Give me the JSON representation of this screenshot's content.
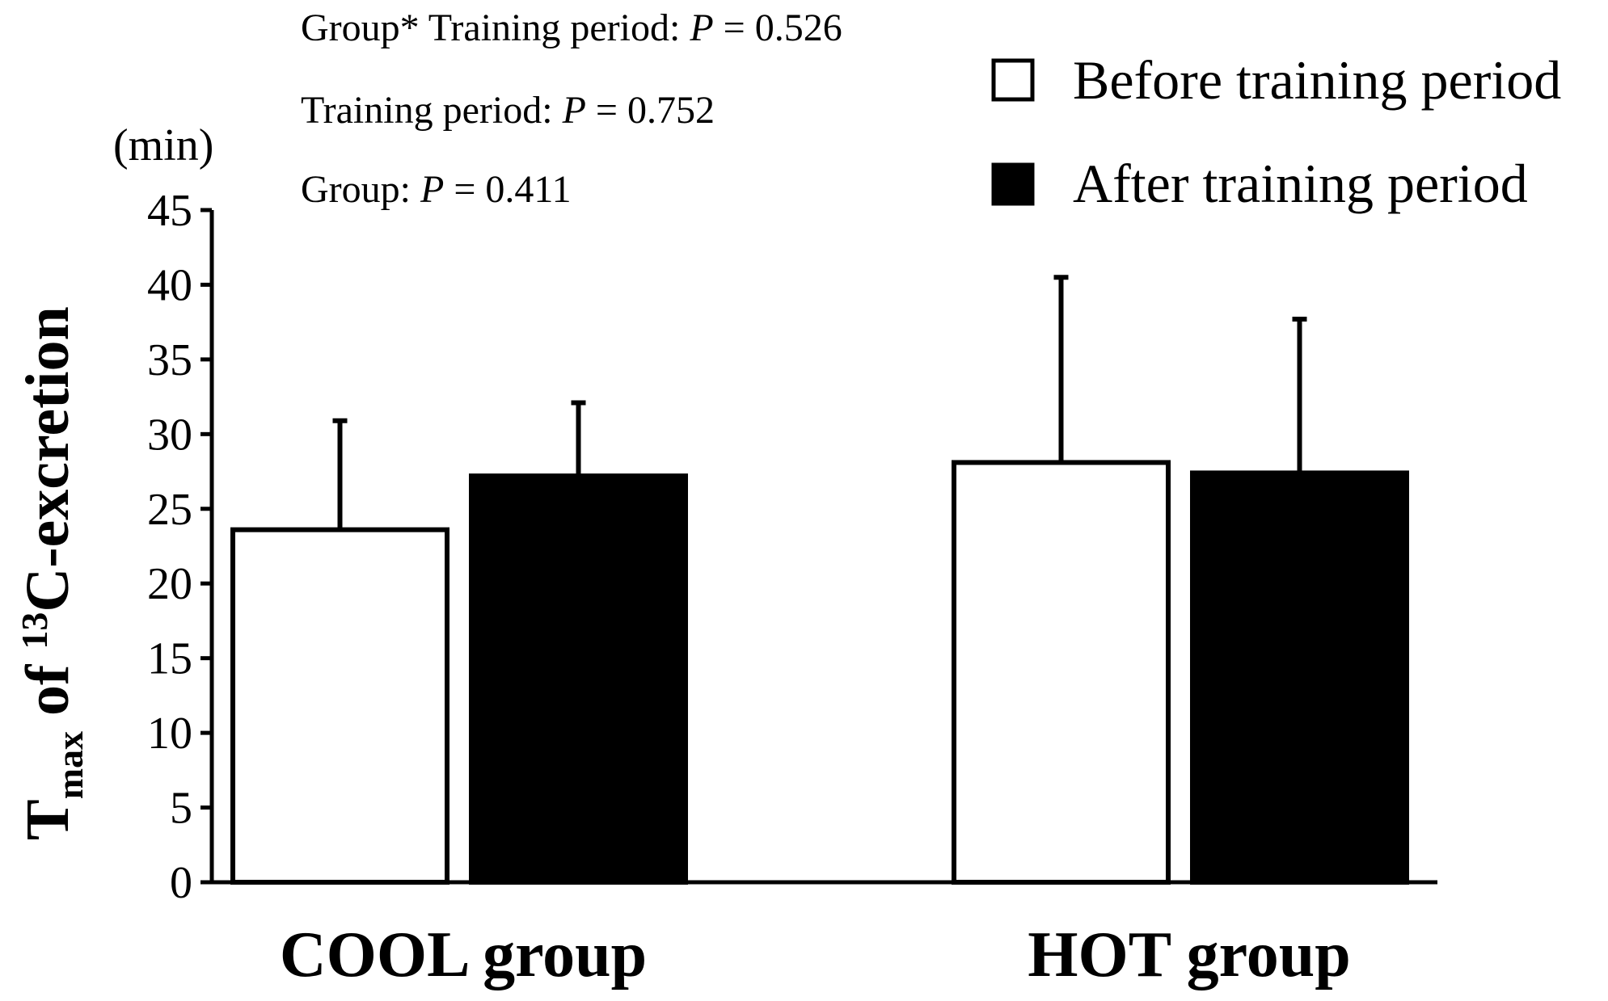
{
  "chart_data": {
    "type": "bar",
    "title": "",
    "categories": [
      "COOL group",
      "HOT group"
    ],
    "series": [
      {
        "name": "Before training period",
        "values": [
          23.6,
          28.1
        ],
        "errors": [
          7.3,
          12.4
        ],
        "color": "#ffffff"
      },
      {
        "name": "After training period",
        "values": [
          27.2,
          27.4
        ],
        "errors": [
          4.9,
          10.3
        ],
        "color": "#000000"
      }
    ],
    "ylim": [
      0,
      45
    ],
    "yticks": [
      0,
      5,
      10,
      15,
      20,
      25,
      30,
      35,
      40,
      45
    ],
    "ytick_labels": [
      "0",
      "5",
      "10",
      "15",
      "20",
      "25",
      "30",
      "35",
      "40",
      "45"
    ],
    "yunit": "(min)",
    "ylabel": {
      "main": "T",
      "sub": "max",
      "mid": " of ",
      "sup": "13",
      "end": "C-excretion"
    },
    "xlabel": "",
    "legend_position": "top-right",
    "annotations": [
      {
        "prefix": "Group* Training period: ",
        "var": "P",
        "suffix": " = 0.526"
      },
      {
        "prefix": "Training period: ",
        "var": "P",
        "suffix": " = 0.752"
      },
      {
        "prefix": "Group: ",
        "var": "P",
        "suffix": " = 0.411"
      }
    ],
    "grid": false
  }
}
